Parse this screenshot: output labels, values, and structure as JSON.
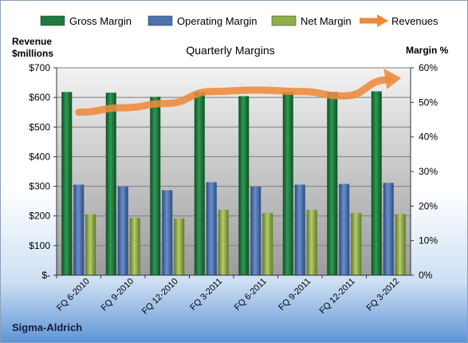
{
  "footer": {
    "company": "Sigma-Aldrich"
  },
  "colors": {
    "gross": "#1e7a3e",
    "operating": "#4a72b0",
    "net": "#8fae4a",
    "revenue": "#ee8a3a"
  },
  "chart_data": {
    "type": "bar",
    "title": "Quarterly Margins",
    "ylabel": "Revenue $millions",
    "y2label": "Margin %",
    "categories": [
      "FQ 6-2010",
      "FQ 9-2010",
      "FQ 12-2010",
      "FQ 3-2011",
      "FQ 6-2011",
      "FQ 9-2011",
      "FQ 12-2011",
      "FQ 3-2012"
    ],
    "ylim": [
      0,
      700
    ],
    "y2lim": [
      0,
      60
    ],
    "yticks": [
      "$-",
      "$100",
      "$200",
      "$300",
      "$400",
      "$500",
      "$600",
      "$700"
    ],
    "y2ticks": [
      "0%",
      "10%",
      "20%",
      "30%",
      "40%",
      "50%",
      "60%"
    ],
    "legend_position": "top",
    "grid": true,
    "series": [
      {
        "name": "Gross Margin",
        "axis": "right",
        "values": [
          53,
          52.8,
          51.6,
          53,
          51.8,
          53,
          53,
          53.2
        ]
      },
      {
        "name": "Operating Margin",
        "axis": "right",
        "values": [
          26.2,
          25.6,
          24.6,
          26.9,
          25.6,
          26.2,
          26.4,
          26.7
        ]
      },
      {
        "name": "Net Margin",
        "axis": "right",
        "values": [
          17.6,
          16.6,
          16.4,
          18.9,
          18,
          18.9,
          18,
          17.7
        ]
      },
      {
        "name": "Revenues",
        "axis": "left",
        "type": "line",
        "values": [
          550,
          565,
          580,
          620,
          625,
          620,
          605,
          660
        ]
      }
    ]
  }
}
